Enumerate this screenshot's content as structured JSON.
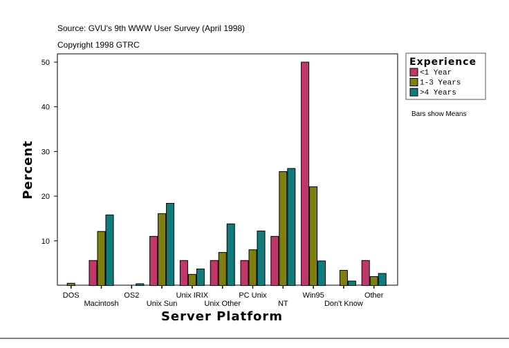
{
  "chart_data": {
    "type": "bar",
    "title": "Source: GVU's 9th WWW User Survey (April 1998)",
    "subtitle": "Copyright 1998 GTRC",
    "xlabel": "Server Platform",
    "ylabel": "Percent",
    "ylim": [
      0,
      52
    ],
    "yticks": [
      10,
      20,
      30,
      40,
      50
    ],
    "grid": false,
    "legend_placement": "right",
    "legend_title": "Experience",
    "note": "Bars show Means",
    "categories": [
      "DOS",
      "Macintosh",
      "OS2",
      "Unix Sun",
      "Unix IRIX",
      "Unix Other",
      "PC Unix",
      "NT",
      "Win95",
      "Don't Know",
      "Other"
    ],
    "series": [
      {
        "name": "<1 Year",
        "color": "#c0386a",
        "values": [
          0,
          5.6,
          0,
          11.0,
          5.6,
          5.6,
          5.6,
          11.0,
          50.0,
          0,
          5.6
        ]
      },
      {
        "name": "1-3 Years",
        "color": "#7f7f0f",
        "values": [
          0.5,
          12.1,
          0,
          16.1,
          2.5,
          7.4,
          8.0,
          25.5,
          22.1,
          3.4,
          2.0
        ]
      },
      {
        "name": ">4 Years",
        "color": "#0f7b7b",
        "values": [
          0,
          15.8,
          0.4,
          18.4,
          3.7,
          13.8,
          12.2,
          26.2,
          5.5,
          1.0,
          2.7
        ]
      }
    ]
  }
}
